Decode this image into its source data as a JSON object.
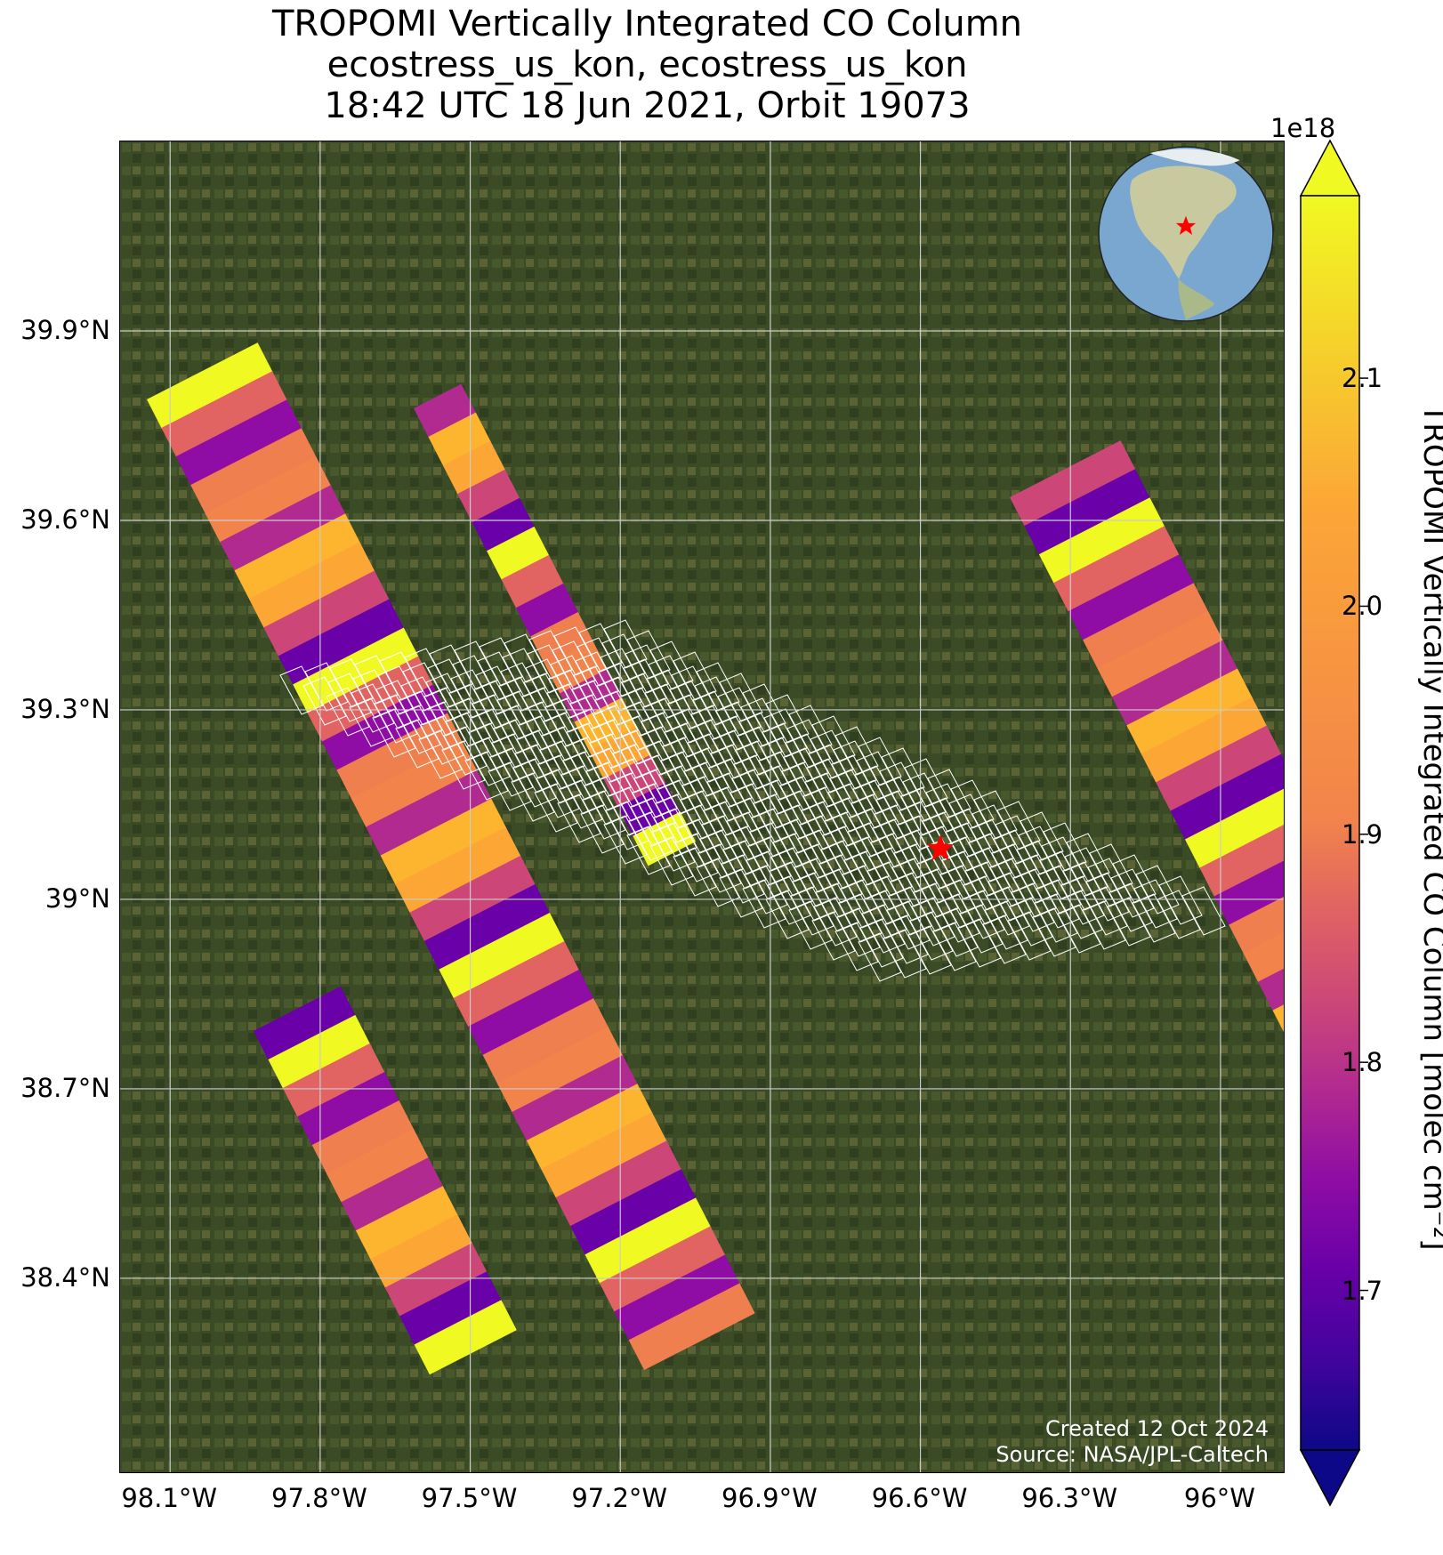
{
  "title": {
    "line1": "TROPOMI Vertically Integrated CO Column",
    "line2": "ecostress_us_kon, ecostress_us_kon",
    "line3": "18:42 UTC 18 Jun 2021, Orbit 19073"
  },
  "map": {
    "lon_range": [
      -98.2,
      -95.87
    ],
    "lat_range": [
      38.09,
      40.2
    ],
    "x_ticks": [
      "98.1°W",
      "97.8°W",
      "97.5°W",
      "97.2°W",
      "96.9°W",
      "96.6°W",
      "96.3°W",
      "96°W"
    ],
    "x_tick_values": [
      -98.1,
      -97.8,
      -97.5,
      -97.2,
      -96.9,
      -96.6,
      -96.3,
      -96.0
    ],
    "y_ticks": [
      "39.9°N",
      "39.6°N",
      "39.3°N",
      "39°N",
      "38.7°N",
      "38.4°N"
    ],
    "y_tick_values": [
      39.9,
      39.6,
      39.3,
      39.0,
      38.7,
      38.4
    ],
    "gridlines": true,
    "site_marker": {
      "lon": -96.56,
      "lat": 39.08,
      "symbol": "star",
      "color": "#ff0000"
    },
    "background": "satellite imagery",
    "footprint_color": "#ffffff",
    "globe_inset": {
      "position": "top-right",
      "center": "North America",
      "marker": "star"
    }
  },
  "colorbar": {
    "colormap": "plasma",
    "range": [
      1.63,
      2.18
    ],
    "exponent": "1e18",
    "ticks": [
      "1.7",
      "1.8",
      "1.9",
      "2.0",
      "2.1"
    ],
    "tick_values": [
      1.7,
      1.8,
      1.9,
      2.0,
      2.1
    ],
    "label": "TROPOMI Vertically Integrated CO Column [molec cm⁻²]",
    "extend": "both"
  },
  "credits": {
    "created": "Created 12 Oct 2024",
    "source": "Source: NASA/JPL-Caltech"
  }
}
